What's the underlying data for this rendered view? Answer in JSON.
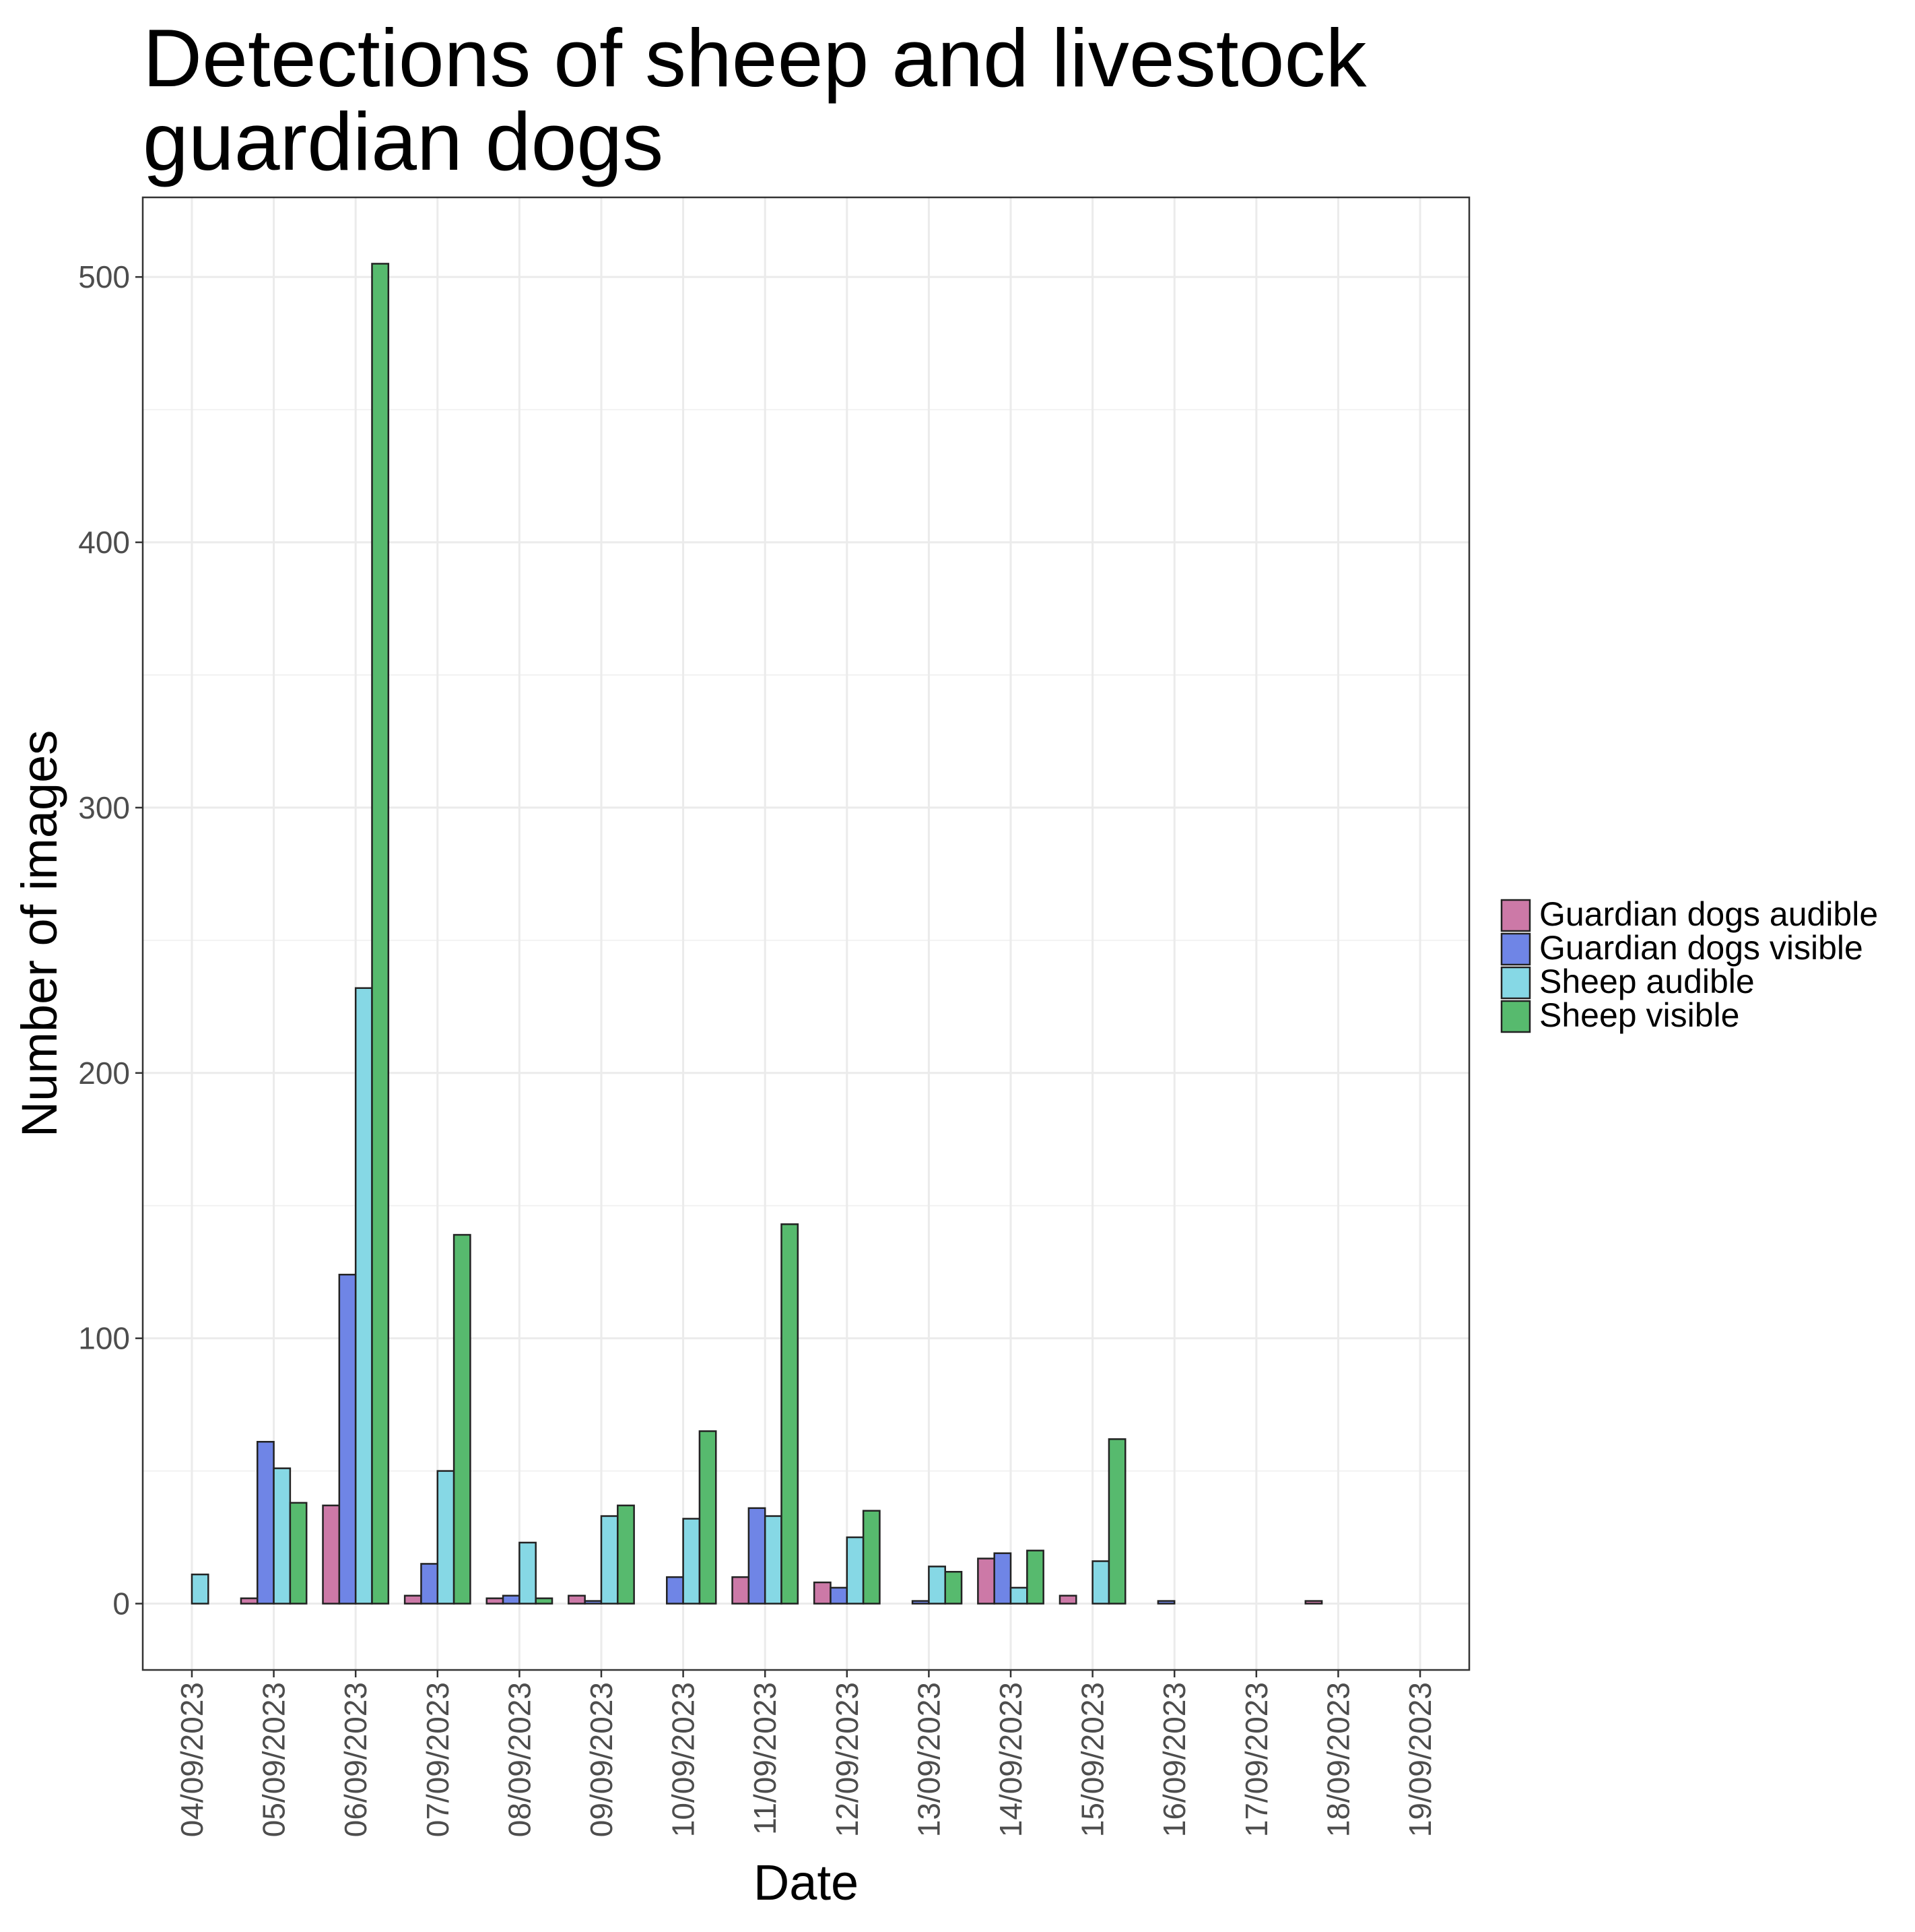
{
  "chart_data": {
    "type": "bar",
    "title_lines": [
      "Detections of sheep and livestock",
      "guardian dogs"
    ],
    "xlabel": "Date",
    "ylabel": "Number of images",
    "ylim": [
      -25,
      530
    ],
    "yticks": [
      0,
      100,
      200,
      300,
      400,
      500
    ],
    "categories": [
      "04/09/2023",
      "05/09/2023",
      "06/09/2023",
      "07/09/2023",
      "08/09/2023",
      "09/09/2023",
      "10/09/2023",
      "11/09/2023",
      "12/09/2023",
      "13/09/2023",
      "14/09/2023",
      "15/09/2023",
      "16/09/2023",
      "17/09/2023",
      "18/09/2023",
      "19/09/2023"
    ],
    "series": [
      {
        "name": "Guardian dogs audible",
        "color": "#cc79a7",
        "values": [
          0,
          2,
          37,
          3,
          2,
          3,
          0,
          10,
          8,
          0,
          17,
          3,
          0,
          0,
          1,
          0
        ]
      },
      {
        "name": "Guardian dogs visible",
        "color": "#6f85e6",
        "values": [
          0,
          61,
          124,
          15,
          3,
          1,
          10,
          36,
          6,
          1,
          19,
          0,
          1,
          0,
          0,
          0
        ]
      },
      {
        "name": "Sheep audible",
        "color": "#86d8e5",
        "values": [
          11,
          51,
          232,
          50,
          23,
          33,
          32,
          33,
          25,
          14,
          6,
          16,
          0,
          0,
          0,
          0
        ]
      },
      {
        "name": "Sheep visible",
        "color": "#57ba6e",
        "values": [
          0,
          38,
          505,
          139,
          2,
          37,
          65,
          143,
          35,
          12,
          20,
          62,
          0,
          0,
          0,
          0
        ]
      }
    ],
    "grid": true,
    "legend_position": "right"
  }
}
